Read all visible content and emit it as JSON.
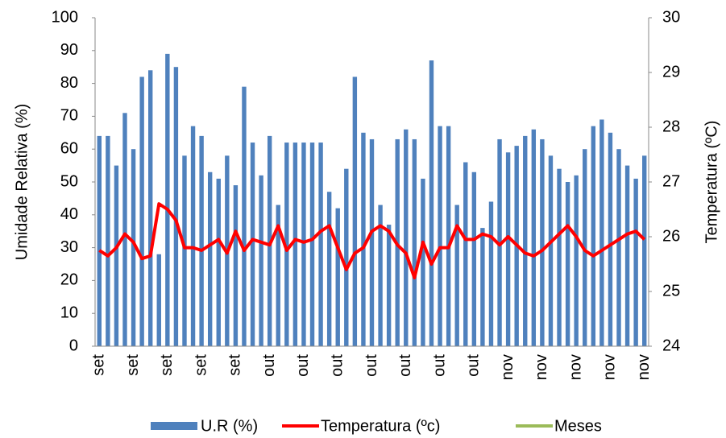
{
  "chart_data": {
    "type": "bar_line",
    "y_label": "Umidade Relativa (%)",
    "y2_label": "Temperatura (ºC)",
    "categories": [
      "set",
      null,
      null,
      null,
      "set",
      null,
      null,
      null,
      "set",
      null,
      null,
      null,
      "set",
      null,
      null,
      null,
      "set",
      null,
      null,
      null,
      "out",
      null,
      null,
      null,
      "out",
      null,
      null,
      null,
      "out",
      null,
      null,
      null,
      "out",
      null,
      null,
      null,
      "out",
      null,
      null,
      null,
      "out",
      null,
      null,
      null,
      "out",
      null,
      null,
      null,
      "nov",
      null,
      null,
      null,
      "nov",
      null,
      null,
      null,
      "nov",
      null,
      null,
      null,
      "nov",
      null,
      null,
      null,
      "nov"
    ],
    "series": [
      {
        "name": "U.R (%)",
        "type": "bar",
        "color": "#4f81bd",
        "values": [
          64,
          64,
          55,
          71,
          60,
          82,
          84,
          28,
          89,
          85,
          58,
          67,
          64,
          53,
          51,
          58,
          49,
          79,
          62,
          52,
          64,
          43,
          62,
          62,
          62,
          62,
          62,
          47,
          42,
          54,
          82,
          65,
          63,
          43,
          37,
          63,
          66,
          63,
          51,
          87,
          67,
          67,
          43,
          56,
          53,
          36,
          44,
          63,
          59,
          61,
          64,
          66,
          63,
          58,
          54,
          50,
          52,
          60,
          67,
          69,
          65,
          60,
          55,
          51,
          58
        ]
      },
      {
        "name": "Temperatura (ºc)",
        "type": "line",
        "axis": "y2",
        "color": "#ff0000",
        "values": [
          25.75,
          25.65,
          25.8,
          26.05,
          25.9,
          25.6,
          25.65,
          26.6,
          26.5,
          26.3,
          25.8,
          25.8,
          25.75,
          25.85,
          25.95,
          25.7,
          26.1,
          25.75,
          25.95,
          25.9,
          25.85,
          26.2,
          25.75,
          25.95,
          25.9,
          25.95,
          26.1,
          26.2,
          25.8,
          25.4,
          25.7,
          25.8,
          26.1,
          26.2,
          26.1,
          25.85,
          25.7,
          25.25,
          25.9,
          25.5,
          25.8,
          25.8,
          26.2,
          25.95,
          25.95,
          26.05,
          26.0,
          25.85,
          26.0,
          25.85,
          25.7,
          25.65,
          25.75,
          25.9,
          26.05,
          26.2,
          26.0,
          25.75,
          25.65,
          25.75,
          25.85,
          25.95,
          26.05,
          26.1,
          25.95
        ]
      },
      {
        "name": "Meses",
        "type": "line",
        "color": "#9bbb59",
        "values": [
          null,
          null,
          null,
          null,
          null,
          null,
          null,
          null,
          null,
          null,
          null,
          null,
          null,
          null,
          null,
          null,
          null,
          null,
          null,
          null,
          null,
          null,
          null,
          null,
          null,
          null,
          null,
          null,
          null,
          null,
          null,
          null,
          null,
          null,
          null,
          null,
          null,
          null,
          null,
          null,
          null,
          null,
          null,
          null,
          null,
          null,
          null,
          null,
          null,
          null,
          null,
          null,
          null,
          null,
          null,
          null,
          null,
          null,
          null,
          null,
          null,
          null,
          null,
          null,
          null
        ]
      }
    ],
    "ylim": [
      0,
      100
    ],
    "yticks": [
      0,
      10,
      20,
      30,
      40,
      50,
      60,
      70,
      80,
      90,
      100
    ],
    "y2lim": [
      24,
      30
    ],
    "y2ticks": [
      24,
      25,
      26,
      27,
      28,
      29,
      30
    ],
    "legend": "bottom"
  }
}
